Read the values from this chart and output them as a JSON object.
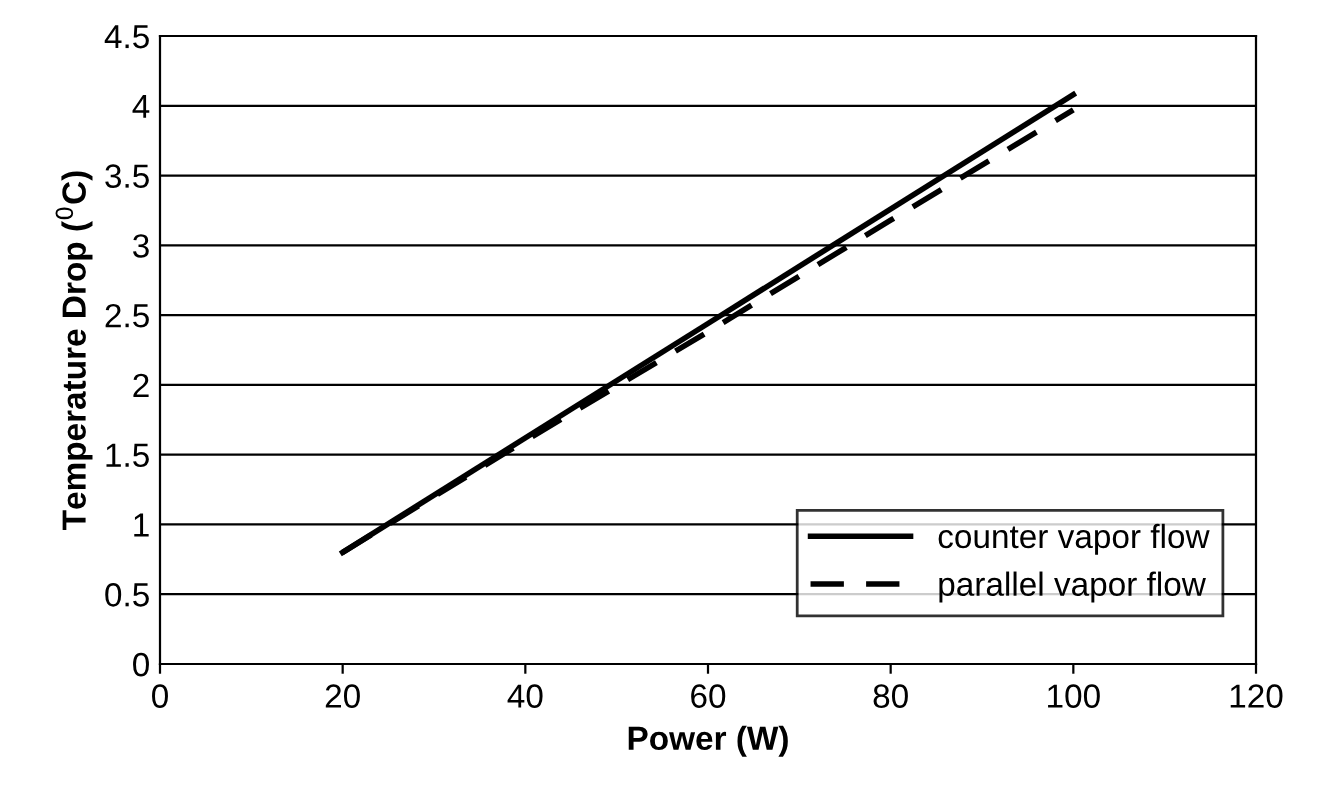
{
  "chart_data": {
    "type": "line",
    "xlabel": "Power (W)",
    "ylabel": "Temperature Drop ($^{0}$C)",
    "xlim": [
      0,
      120
    ],
    "xticks": [
      0,
      20,
      40,
      60,
      80,
      100,
      120
    ],
    "ylim": [
      0,
      4.5
    ],
    "yticks": [
      0,
      0.5,
      1,
      1.5,
      2,
      2.5,
      3,
      3.5,
      4,
      4.5
    ],
    "grid": "y",
    "legend": "bottom right",
    "series": [
      {
        "name": "counter vapor flow",
        "color": "#000000",
        "line_style": "solid",
        "x": [
          20,
          60,
          100
        ],
        "values": [
          0.8,
          2.44,
          4.08
        ]
      },
      {
        "name": "parallel vapor flow",
        "color": "#000000",
        "line_style": "dashed",
        "x": [
          20,
          40,
          60,
          80,
          100
        ],
        "values": [
          0.8,
          1.6,
          2.38,
          3.18,
          3.97
        ]
      }
    ]
  }
}
